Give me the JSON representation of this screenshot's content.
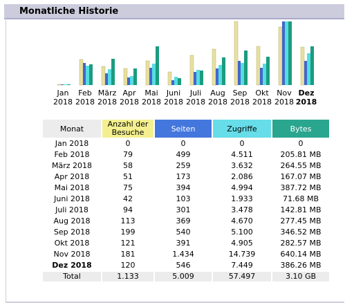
{
  "section": {
    "title": "Monatliche Historie"
  },
  "colors": {
    "visits": "#e8e0a0",
    "pages": "#4466cc",
    "hits": "#55dde0",
    "bytes": "#1a9c7e"
  },
  "months": [
    {
      "name": "Jan",
      "year": "2018",
      "current": false
    },
    {
      "name": "Feb",
      "year": "2018",
      "current": false
    },
    {
      "name": "März",
      "year": "2018",
      "current": false
    },
    {
      "name": "Apr",
      "year": "2018",
      "current": false
    },
    {
      "name": "Mai",
      "year": "2018",
      "current": false
    },
    {
      "name": "Juni",
      "year": "2018",
      "current": false
    },
    {
      "name": "Juli",
      "year": "2018",
      "current": false
    },
    {
      "name": "Aug",
      "year": "2018",
      "current": false
    },
    {
      "name": "Sep",
      "year": "2018",
      "current": false
    },
    {
      "name": "Okt",
      "year": "2018",
      "current": false
    },
    {
      "name": "Nov",
      "year": "2018",
      "current": false
    },
    {
      "name": "Dez",
      "year": "2018",
      "current": true
    }
  ],
  "table": {
    "headers": {
      "month": "Monat",
      "visits": "Anzahl der Besuche",
      "pages": "Seiten",
      "hits": "Zugriffe",
      "bytes": "Bytes"
    },
    "rows": [
      {
        "month": "Jan 2018",
        "visits": "0",
        "pages": "0",
        "hits": "0",
        "bytes": "0",
        "current": false
      },
      {
        "month": "Feb 2018",
        "visits": "79",
        "pages": "499",
        "hits": "4.511",
        "bytes": "205.81 MB",
        "current": false
      },
      {
        "month": "März 2018",
        "visits": "58",
        "pages": "259",
        "hits": "3.632",
        "bytes": "264.55 MB",
        "current": false
      },
      {
        "month": "Apr 2018",
        "visits": "51",
        "pages": "173",
        "hits": "2.086",
        "bytes": "167.07 MB",
        "current": false
      },
      {
        "month": "Mai 2018",
        "visits": "75",
        "pages": "394",
        "hits": "4.994",
        "bytes": "387.72 MB",
        "current": false
      },
      {
        "month": "Juni 2018",
        "visits": "42",
        "pages": "103",
        "hits": "1.933",
        "bytes": "71.68 MB",
        "current": false
      },
      {
        "month": "Juli 2018",
        "visits": "94",
        "pages": "301",
        "hits": "3.478",
        "bytes": "142.81 MB",
        "current": false
      },
      {
        "month": "Aug 2018",
        "visits": "113",
        "pages": "369",
        "hits": "4.670",
        "bytes": "277.45 MB",
        "current": false
      },
      {
        "month": "Sep 2018",
        "visits": "199",
        "pages": "540",
        "hits": "5.100",
        "bytes": "346.52 MB",
        "current": false
      },
      {
        "month": "Okt 2018",
        "visits": "121",
        "pages": "391",
        "hits": "4.905",
        "bytes": "282.57 MB",
        "current": false
      },
      {
        "month": "Nov 2018",
        "visits": "181",
        "pages": "1.434",
        "hits": "14.739",
        "bytes": "640.14 MB",
        "current": false
      },
      {
        "month": "Dez 2018",
        "visits": "120",
        "pages": "546",
        "hits": "7.449",
        "bytes": "386.26 MB",
        "current": true
      }
    ],
    "total": {
      "label": "Total",
      "visits": "1.133",
      "pages": "5.009",
      "hits": "57.497",
      "bytes": "3.10 GB"
    }
  },
  "chart_data": {
    "type": "bar",
    "categories": [
      "Jan 2018",
      "Feb 2018",
      "März 2018",
      "Apr 2018",
      "Mai 2018",
      "Juni 2018",
      "Juli 2018",
      "Aug 2018",
      "Sep 2018",
      "Okt 2018",
      "Nov 2018",
      "Dez 2018"
    ],
    "series": [
      {
        "values": [
          0,
          79,
          58,
          51,
          75,
          42,
          94,
          113,
          199,
          121,
          181,
          120
        ]
      },
      {
        "values": [
          0,
          499,
          259,
          173,
          394,
          103,
          301,
          369,
          540,
          391,
          1434,
          546
        ]
      },
      {
        "values": [
          0,
          4511,
          3632,
          2086,
          4994,
          1933,
          3478,
          4670,
          5100,
          4905,
          14739,
          7449
        ]
      },
      {
        "values": [
          0,
          205.81,
          264.55,
          167.07,
          387.72,
          71.68,
          142.81,
          277.45,
          346.52,
          282.57,
          640.14,
          386.26
        ]
      }
    ],
    "title": "",
    "xlabel": "",
    "ylabel": "",
    "grid": false
  }
}
